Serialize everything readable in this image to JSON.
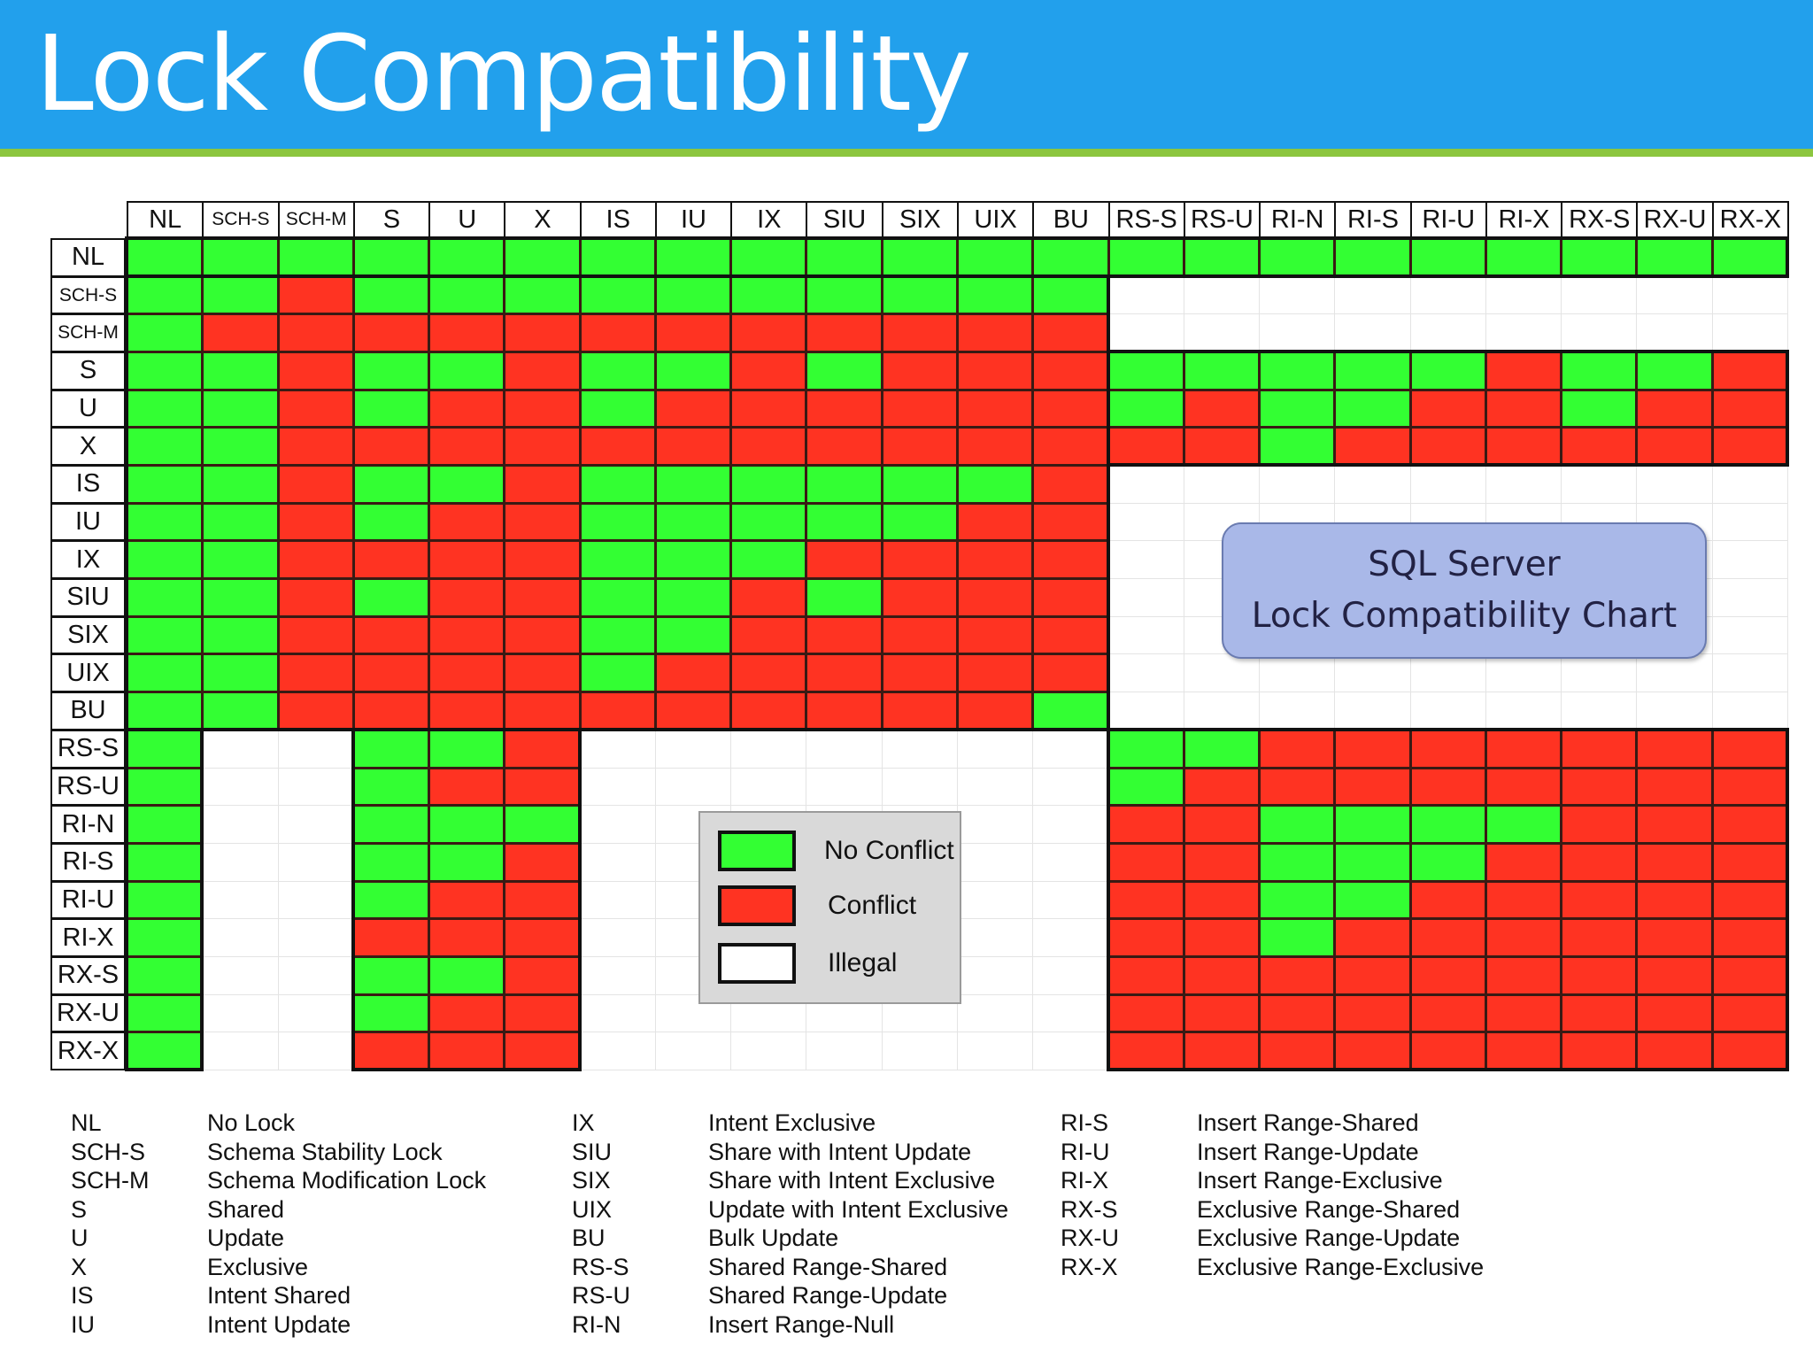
{
  "title": "Lock Compatibility",
  "colors": {
    "no_conflict": "#33ff33",
    "conflict": "#ff3322",
    "illegal": "#ffffff",
    "title_bar": "#22a0ec",
    "title_rule": "#8cc63f"
  },
  "badge": {
    "line1": "SQL Server",
    "line2": "Lock Compatibility Chart"
  },
  "legend": [
    {
      "label": "No Conflict",
      "value": "G"
    },
    {
      "label": "Conflict",
      "value": "R"
    },
    {
      "label": "Illegal",
      "value": "I"
    }
  ],
  "chart_data": {
    "type": "heatmap",
    "values_legend": {
      "G": "No Conflict",
      "R": "Conflict",
      "I": "Illegal"
    },
    "columns": [
      "NL",
      "SCH-S",
      "SCH-M",
      "S",
      "U",
      "X",
      "IS",
      "IU",
      "IX",
      "SIU",
      "SIX",
      "UIX",
      "BU",
      "RS-S",
      "RS-U",
      "RI-N",
      "RI-S",
      "RI-U",
      "RI-X",
      "RX-S",
      "RX-U",
      "RX-X"
    ],
    "rows": [
      {
        "lock": "NL",
        "cells": "GGGGGGGGGGGGGGGGGGGGGG"
      },
      {
        "lock": "SCH-S",
        "cells": "GGRGGGGGGGGGGIIIIIIIII"
      },
      {
        "lock": "SCH-M",
        "cells": "GRRRRRRRRRRRRIIIIIIIII"
      },
      {
        "lock": "S",
        "cells": "GGRGGRGGRGRRRGGGGGRGGR"
      },
      {
        "lock": "U",
        "cells": "GGRGRRGRRRRRRGRGGRRGRR"
      },
      {
        "lock": "X",
        "cells": "GGRRRRRRRRRRRRRGRRRRRR"
      },
      {
        "lock": "IS",
        "cells": "GGRGGRGGGGGGRIIIIIIIII"
      },
      {
        "lock": "IU",
        "cells": "GGRGRRGGGGGRRIIIIIIIII"
      },
      {
        "lock": "IX",
        "cells": "GGRRRRGGGRRRRIIIIIIIII"
      },
      {
        "lock": "SIU",
        "cells": "GGRGRRGGRGRRRIIIIIIIII"
      },
      {
        "lock": "SIX",
        "cells": "GGRRRRGGRRRRRIIIIIIIII"
      },
      {
        "lock": "UIX",
        "cells": "GGRRRRGRRRRRRIIIIIIIII"
      },
      {
        "lock": "BU",
        "cells": "GGRRRRRRRRRRGIIIIIIIII"
      },
      {
        "lock": "RS-S",
        "cells": "GIIGGRIIIIIIIGGRRRRRRR"
      },
      {
        "lock": "RS-U",
        "cells": "GIIGRRIIIIIIIGRRRRRRRR"
      },
      {
        "lock": "RI-N",
        "cells": "GIIGGGIIIIIIIRRGGGGRRR"
      },
      {
        "lock": "RI-S",
        "cells": "GIIGGRIIIIIIIRRGGGRRRR"
      },
      {
        "lock": "RI-U",
        "cells": "GIIGRRIIIIIIIRRGGRRRRR"
      },
      {
        "lock": "RI-X",
        "cells": "GIIRRRIIIIIIIRRGRRRRRR"
      },
      {
        "lock": "RX-S",
        "cells": "GIIGGRIIIIIIIRRRRRRRRR"
      },
      {
        "lock": "RX-U",
        "cells": "GIIGRRIIIIIIIRRRRRRRRR"
      },
      {
        "lock": "RX-X",
        "cells": "GIIRRRIIIIIIIRRRRRRRRR"
      }
    ]
  },
  "abbreviations": [
    [
      [
        "NL",
        "No Lock"
      ],
      [
        "SCH-S",
        "Schema Stability Lock"
      ],
      [
        "SCH-M",
        "Schema Modification Lock"
      ],
      [
        "S",
        "Shared"
      ],
      [
        "U",
        "Update"
      ],
      [
        "X",
        "Exclusive"
      ],
      [
        "IS",
        "Intent Shared"
      ],
      [
        "IU",
        "Intent Update"
      ]
    ],
    [
      [
        "IX",
        "Intent Exclusive"
      ],
      [
        "SIU",
        "Share with Intent Update"
      ],
      [
        "SIX",
        "Share with Intent Exclusive"
      ],
      [
        "UIX",
        "Update with Intent Exclusive"
      ],
      [
        "BU",
        "Bulk Update"
      ],
      [
        "RS-S",
        "Shared Range-Shared"
      ],
      [
        "RS-U",
        "Shared Range-Update"
      ],
      [
        "RI-N",
        "Insert Range-Null"
      ]
    ],
    [
      [
        "RI-S",
        "Insert Range-Shared"
      ],
      [
        "RI-U",
        "Insert Range-Update"
      ],
      [
        "RI-X",
        "Insert Range-Exclusive"
      ],
      [
        "RX-S",
        "Exclusive Range-Shared"
      ],
      [
        "RX-U",
        "Exclusive Range-Update"
      ],
      [
        "RX-X",
        "Exclusive Range-Exclusive"
      ]
    ]
  ]
}
